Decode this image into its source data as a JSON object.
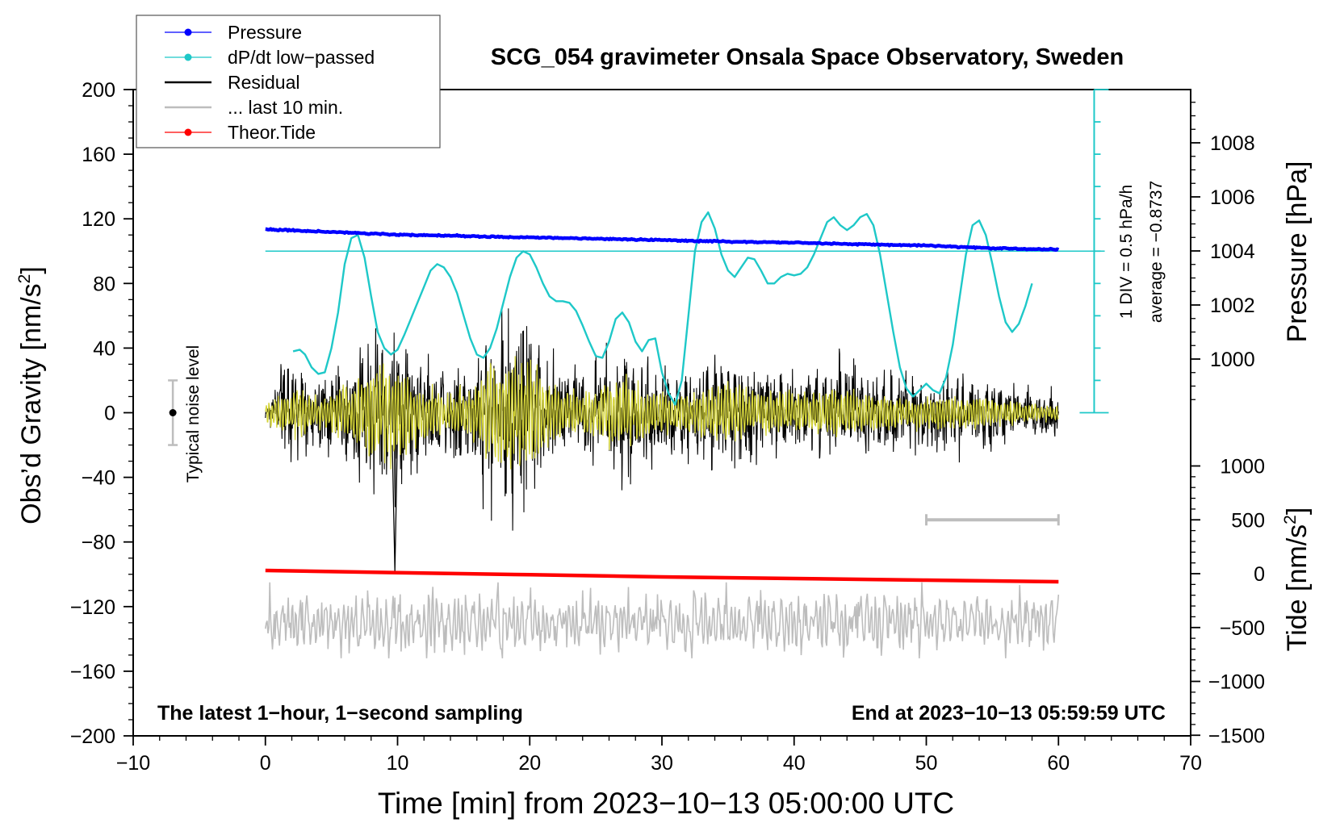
{
  "chart_data": {
    "type": "line",
    "title": "SCG_054 gravimeter Onsala Space Observatory, Sweden",
    "xlabel": "Time [min] from 2023−10−13 05:00:00 UTC",
    "ylabel_left": "Obs’d Gravity [nm/s",
    "ylabel_left_sup": "2",
    "ylabel_left_close": "]",
    "ylabel_pressure": "Pressure [hPa]",
    "ylabel_tide": "Tide [nm/s",
    "ylabel_tide_sup": "2",
    "ylabel_tide_close": "]",
    "xlim": [
      -10,
      70
    ],
    "ylim": [
      -200,
      200
    ],
    "x_ticks": [
      "−10",
      "0",
      "10",
      "20",
      "30",
      "40",
      "50",
      "60",
      "70"
    ],
    "y_ticks": [
      "200",
      "160",
      "120",
      "80",
      "40",
      "0",
      "−40",
      "−80",
      "−120",
      "−160",
      "−200"
    ],
    "pressure_axis": {
      "range": [
        998,
        1010
      ],
      "ticks": [
        "1000",
        "1002",
        "1004",
        "1006",
        "1008"
      ]
    },
    "tide_axis": {
      "range": [
        -1500,
        1500
      ],
      "ticks": [
        "1000",
        "500",
        "0",
        "−500",
        "−1000",
        "−1500"
      ]
    },
    "legend": [
      {
        "label": "Pressure",
        "color": "#0000ff",
        "marker": true
      },
      {
        "label": "dP/dt low−passed",
        "color": "#1ec8c8",
        "marker": true
      },
      {
        "label": "Residual",
        "color": "#000000",
        "marker": false
      },
      {
        "label": "... last 10 min.",
        "color": "#bdbdbd",
        "marker": false
      },
      {
        "label": "Theor.Tide",
        "color": "#ff0000",
        "marker": true
      }
    ],
    "legend_position": "top-left",
    "annotations": {
      "bottom_left": "The latest 1−hour, 1−second sampling",
      "bottom_right": "End at 2023−10−13 05:59:59 UTC",
      "noise_label": "Typical noise level",
      "dpdt_scale": "1 DIV = 0.5 hPa/h",
      "dpdt_average": "average = −0.8737"
    },
    "noise_bar": {
      "x": -7,
      "center": 0,
      "half_range": 20
    },
    "series": [
      {
        "name": "Pressure",
        "axis": "pressure",
        "color": "#0000ff",
        "x": [
          0,
          5,
          10,
          15,
          20,
          25,
          30,
          35,
          40,
          45,
          50,
          55,
          60
        ],
        "values": [
          1004.8,
          1004.7,
          1004.6,
          1004.55,
          1004.5,
          1004.45,
          1004.4,
          1004.35,
          1004.3,
          1004.25,
          1004.2,
          1004.1,
          1004.05
        ]
      },
      {
        "name": "dP/dt low-passed",
        "axis": "dpdt_div",
        "color": "#1ec8c8",
        "baseline_y": 100,
        "x": [
          2.1,
          2.6,
          3,
          3.5,
          4,
          4.5,
          5,
          5.5,
          6,
          6.5,
          7,
          7.5,
          8,
          8.5,
          9,
          9.5,
          10,
          10.5,
          11,
          11.5,
          12,
          12.5,
          13,
          13.5,
          14,
          14.5,
          15,
          15.5,
          16,
          16.5,
          17,
          17.5,
          18,
          18.5,
          19,
          19.5,
          20,
          20.5,
          21,
          21.5,
          22,
          22.5,
          23,
          23.5,
          24,
          24.5,
          25,
          25.5,
          26,
          26.5,
          27,
          27.5,
          28,
          28.5,
          29,
          29.5,
          30,
          30.5,
          31,
          31.5,
          32,
          32.5,
          33,
          33.5,
          34,
          34.5,
          35,
          35.5,
          36,
          36.5,
          37,
          37.5,
          38,
          38.5,
          39,
          39.5,
          40,
          40.5,
          41,
          41.5,
          42,
          42.5,
          43,
          43.5,
          44,
          44.5,
          45,
          45.5,
          46,
          46.5,
          47,
          47.5,
          48,
          48.5,
          49,
          49.5,
          50,
          50.5,
          51,
          51.5,
          52,
          52.5,
          53,
          53.5,
          54,
          54.5,
          55,
          55.5,
          56,
          56.5,
          57,
          57.5,
          58
        ],
        "values": [
          38,
          39,
          36,
          28,
          24,
          25,
          40,
          62,
          92,
          108,
          110,
          96,
          72,
          50,
          40,
          36,
          39,
          48,
          58,
          68,
          78,
          88,
          92,
          90,
          84,
          74,
          60,
          46,
          36,
          34,
          40,
          52,
          68,
          84,
          96,
          100,
          98,
          90,
          80,
          72,
          69,
          69,
          68,
          63,
          54,
          44,
          35,
          34,
          44,
          58,
          62,
          56,
          44,
          38,
          45,
          46,
          25,
          12,
          5,
          20,
          60,
          100,
          118,
          124,
          114,
          98,
          88,
          84,
          90,
          96,
          95,
          88,
          80,
          80,
          84,
          86,
          85,
          86,
          90,
          98,
          108,
          118,
          121,
          116,
          113,
          116,
          121,
          123,
          116,
          98,
          74,
          50,
          28,
          15,
          10,
          14,
          18,
          14,
          12,
          22,
          42,
          70,
          98,
          116,
          119,
          110,
          92,
          72,
          56,
          50,
          55,
          66,
          80
        ]
      },
      {
        "name": "Residual",
        "axis": "gravity",
        "color": "#000000",
        "x_range": [
          0,
          60
        ],
        "approx_range": [
          -97,
          85
        ],
        "sampling": "1 s"
      },
      {
        "name": "Residual low-passed",
        "axis": "gravity",
        "color": "#d4d43a",
        "x_range": [
          0,
          60
        ],
        "approx_range": [
          -35,
          35
        ]
      },
      {
        "name": "... last 10 min.",
        "axis": "gravity",
        "color": "#bdbdbd",
        "x_range": [
          0,
          60
        ],
        "center": -130,
        "approx_range": [
          -152,
          -105
        ]
      },
      {
        "name": "Theor.Tide",
        "axis": "tide",
        "color": "#ff0000",
        "x": [
          0,
          10,
          20,
          30,
          40,
          50,
          60
        ],
        "values": [
          30,
          10,
          -10,
          -30,
          -45,
          -60,
          -75
        ]
      }
    ],
    "time_window_bar": {
      "axis": "tide",
      "x_start": 50,
      "x_end": 60,
      "value": 500,
      "color": "#bdbdbd"
    }
  }
}
